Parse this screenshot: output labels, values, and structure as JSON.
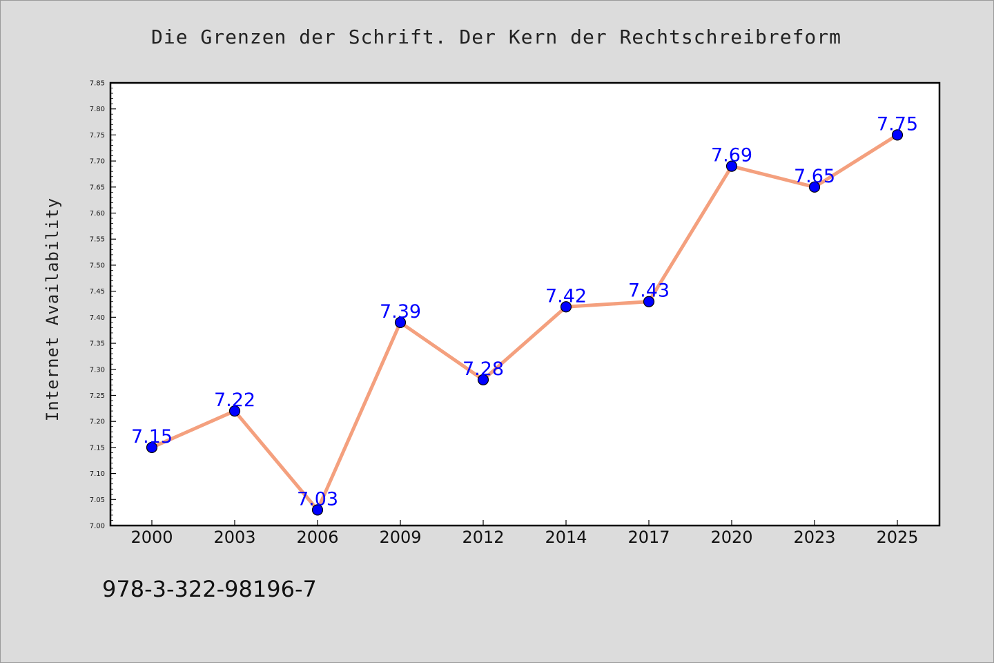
{
  "chart_data": {
    "type": "line",
    "title": "Die Grenzen der Schrift. Der Kern der Rechtschreibreform",
    "xlabel": "",
    "ylabel": "Internet Availability",
    "categories": [
      "2000",
      "2003",
      "2006",
      "2009",
      "2012",
      "2014",
      "2017",
      "2020",
      "2023",
      "2025"
    ],
    "series": [
      {
        "values": [
          7.15,
          7.22,
          7.03,
          7.39,
          7.28,
          7.42,
          7.43,
          7.69,
          7.65,
          7.75
        ]
      }
    ],
    "data_labels": [
      "7.15",
      "7.22",
      "7.03",
      "7.39",
      "7.28",
      "7.42",
      "7.43",
      "7.69",
      "7.65",
      "7.75"
    ],
    "ylim": [
      7.0,
      7.85
    ],
    "yticks": [
      "7.00",
      "7.05",
      "7.10",
      "7.15",
      "7.20",
      "7.25",
      "7.30",
      "7.35",
      "7.40",
      "7.45",
      "7.50",
      "7.55",
      "7.60",
      "7.65",
      "7.70",
      "7.75",
      "7.80",
      "7.85"
    ],
    "grid": false,
    "legend": "none",
    "colors": {
      "line": "#f4a07e",
      "marker": "#0000ff",
      "data_label": "#0000ff",
      "plot_bg": "#ffffff",
      "page_bg": "#dcdcdc"
    }
  },
  "footer": {
    "isbn": "978-3-322-98196-7"
  }
}
